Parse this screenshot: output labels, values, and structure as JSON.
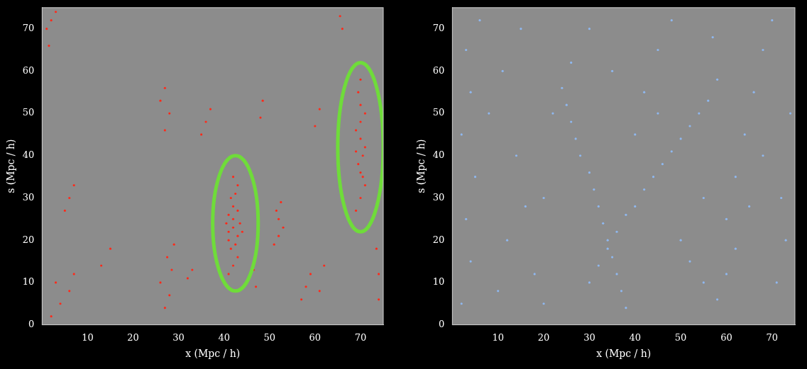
{
  "chart_data": [
    {
      "type": "scatter",
      "x_label": "x (Mpc / h)",
      "y_label": "s (Mpc / h)",
      "xlim": [
        0,
        75
      ],
      "ylim": [
        0,
        75
      ],
      "xticks": [
        10,
        20,
        30,
        40,
        50,
        60,
        70
      ],
      "yticks": [
        0,
        10,
        20,
        30,
        40,
        50,
        60,
        70
      ],
      "grid": false,
      "marker": "circle",
      "series": [
        {
          "color": "#ff2a1a",
          "x": [
            41,
            42,
            43,
            41.5,
            42.5,
            43,
            41,
            42,
            43.5,
            42,
            41,
            43,
            42,
            41.5,
            42.5,
            43,
            42,
            41,
            44,
            40.5,
            69,
            70,
            71,
            70,
            69.5,
            70.5,
            71,
            70,
            69,
            70,
            71,
            70,
            69.5,
            70,
            70.5,
            69,
            51,
            52,
            53,
            52,
            51.5,
            52.5,
            27,
            28,
            26,
            28.5,
            27.5,
            29,
            27,
            28,
            26,
            27,
            35,
            36,
            37,
            57,
            58,
            59,
            61,
            62,
            2,
            4,
            6,
            3,
            7,
            5,
            6,
            7,
            1,
            2,
            3,
            1.5,
            60,
            61,
            48,
            48.5,
            74,
            74,
            73.5,
            66,
            65.5,
            32,
            33,
            47,
            46.5,
            13,
            15
          ],
          "values": [
            12,
            14,
            16,
            18,
            19,
            21,
            22,
            23,
            24,
            25,
            26,
            27,
            28,
            30,
            31,
            33,
            35,
            20,
            22,
            24,
            27,
            30,
            33,
            36,
            38,
            40,
            42,
            44,
            46,
            48,
            50,
            52,
            55,
            58,
            35,
            41,
            19,
            21,
            23,
            25,
            27,
            29,
            4,
            7,
            10,
            13,
            16,
            19,
            46,
            50,
            53,
            56,
            45,
            48,
            51,
            6,
            9,
            12,
            8,
            14,
            2,
            5,
            8,
            10,
            12,
            27,
            30,
            33,
            70,
            72,
            74,
            66,
            47,
            51,
            49,
            53,
            6,
            12,
            18,
            70,
            73,
            11,
            13,
            9,
            13,
            14,
            18
          ]
        }
      ],
      "highlights": [
        {
          "x": 42.5,
          "y": 24,
          "rx": 5,
          "ry": 16
        },
        {
          "x": 70,
          "y": 42,
          "rx": 5,
          "ry": 20
        }
      ]
    },
    {
      "type": "scatter",
      "x_label": "x (Mpc / h)",
      "y_label": "s (Mpc / h)",
      "xlim": [
        0,
        75
      ],
      "ylim": [
        0,
        75
      ],
      "xticks": [
        10,
        20,
        30,
        40,
        50,
        60,
        70
      ],
      "yticks": [
        0,
        10,
        20,
        30,
        40,
        50,
        60,
        70
      ],
      "grid": false,
      "marker": "circle",
      "series": [
        {
          "color": "#8fb8f0",
          "x": [
            2,
            4,
            3,
            5,
            2,
            4,
            3,
            6,
            10,
            12,
            14,
            11,
            15,
            18,
            20,
            22,
            24,
            25,
            26,
            27,
            28,
            30,
            31,
            32,
            33,
            34,
            35,
            36,
            37,
            38,
            30,
            32,
            34,
            36,
            38,
            40,
            42,
            44,
            46,
            48,
            50,
            52,
            54,
            56,
            58,
            40,
            42,
            45,
            48,
            50,
            52,
            55,
            58,
            60,
            62,
            60,
            62,
            64,
            66,
            68,
            70,
            72,
            73,
            71,
            74,
            20,
            16,
            8,
            45,
            55,
            65,
            68,
            57,
            35,
            30,
            26
          ],
          "values": [
            5,
            15,
            25,
            35,
            45,
            55,
            65,
            72,
            8,
            20,
            40,
            60,
            70,
            12,
            30,
            50,
            56,
            52,
            48,
            44,
            40,
            36,
            32,
            28,
            24,
            20,
            16,
            12,
            8,
            4,
            10,
            14,
            18,
            22,
            26,
            28,
            32,
            35,
            38,
            41,
            44,
            47,
            50,
            53,
            58,
            45,
            55,
            65,
            72,
            20,
            15,
            10,
            6,
            12,
            18,
            25,
            35,
            45,
            55,
            65,
            72,
            30,
            20,
            10,
            50,
            5,
            28,
            50,
            50,
            30,
            28,
            40,
            68,
            60,
            70,
            62
          ]
        }
      ]
    }
  ]
}
